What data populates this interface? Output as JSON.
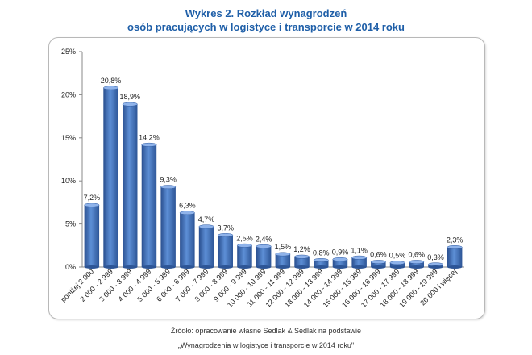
{
  "chart_data": {
    "type": "bar",
    "title": [
      "Wykres 2. Rozkład wynagrodzeń",
      "osób pracujących w logistyce i transporcie w 2014 roku"
    ],
    "categories": [
      "poniżej 2 000",
      "2 000 - 2 999",
      "3 000 - 3 999",
      "4 000 - 4 999",
      "5 000 - 5 999",
      "6 000 - 6 999",
      "7 000 - 7 999",
      "8 000 - 8 999",
      "9 000 - 9 999",
      "10 000 - 10 999",
      "11 000 - 11 999",
      "12 000 - 12 999",
      "13 000 - 13 999",
      "14 000 - 14 999",
      "15 000 - 15 999",
      "16 000 - 16 999",
      "17 000 - 17 999",
      "18 000 - 18 999",
      "19 000 - 19 999",
      "20 000 i więcej"
    ],
    "values": [
      7.2,
      20.8,
      18.9,
      14.2,
      9.3,
      6.3,
      4.7,
      3.7,
      2.5,
      2.4,
      1.5,
      1.2,
      0.8,
      0.9,
      1.1,
      0.6,
      0.5,
      0.6,
      0.3,
      2.3
    ],
    "data_labels": [
      "7,2%",
      "20,8%",
      "18,9%",
      "14,2%",
      "9,3%",
      "6,3%",
      "4,7%",
      "3,7%",
      "2,5%",
      "2,4%",
      "1,5%",
      "1,2%",
      "0,8%",
      "0,9%",
      "1,1%",
      "0,6%",
      "0,5%",
      "0,6%",
      "0,3%",
      "2,3%"
    ],
    "yticks": [
      0,
      5,
      10,
      15,
      20,
      25
    ],
    "ytick_labels": [
      "0%",
      "5%",
      "10%",
      "15%",
      "20%",
      "25%"
    ],
    "ylim": [
      0,
      25
    ],
    "xlabel": "",
    "ylabel": "",
    "grid": false,
    "bar_color": "#3f6fbf"
  },
  "source": {
    "line1": "Źródło: opracowanie własne Sedlak & Sedlak na podstawie",
    "line2": "„Wynagrodzenia w logistyce i transporcie w 2014 roku\""
  }
}
